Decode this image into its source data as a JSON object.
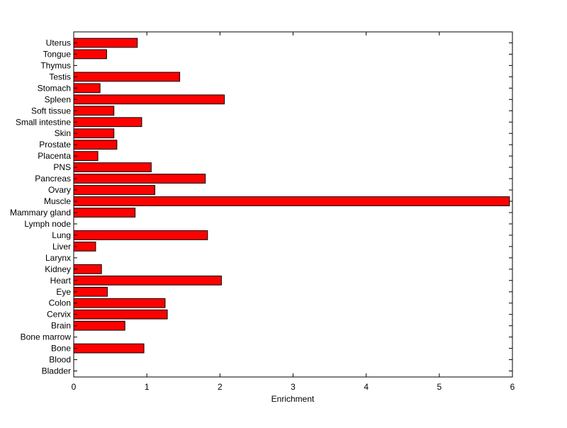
{
  "chart_data": {
    "type": "bar",
    "orientation": "horizontal",
    "title": "",
    "xlabel": "Enrichment",
    "ylabel": "",
    "xlim": [
      0,
      6
    ],
    "xticks": [
      0,
      1,
      2,
      3,
      4,
      5,
      6
    ],
    "grid": false,
    "bar_color": "#ff0000",
    "edge_color": "#000000",
    "categories": [
      "Uterus",
      "Tongue",
      "Thymus",
      "Testis",
      "Stomach",
      "Spleen",
      "Soft tissue",
      "Small intestine",
      "Skin",
      "Prostate",
      "Placenta",
      "PNS",
      "Pancreas",
      "Ovary",
      "Muscle",
      "Mammary gland",
      "Lymph node",
      "Lung",
      "Liver",
      "Larynx",
      "Kidney",
      "Heart",
      "Eye",
      "Colon",
      "Cervix",
      "Brain",
      "Bone marrow",
      "Bone",
      "Blood",
      "Bladder"
    ],
    "values": [
      0.87,
      0.45,
      0,
      1.45,
      0.36,
      2.06,
      0.55,
      0.93,
      0.55,
      0.59,
      0.33,
      1.06,
      1.8,
      1.11,
      5.96,
      0.84,
      0,
      1.83,
      0.3,
      0,
      0.38,
      2.02,
      0.46,
      1.25,
      1.28,
      0.7,
      0,
      0.96,
      0,
      0
    ]
  }
}
